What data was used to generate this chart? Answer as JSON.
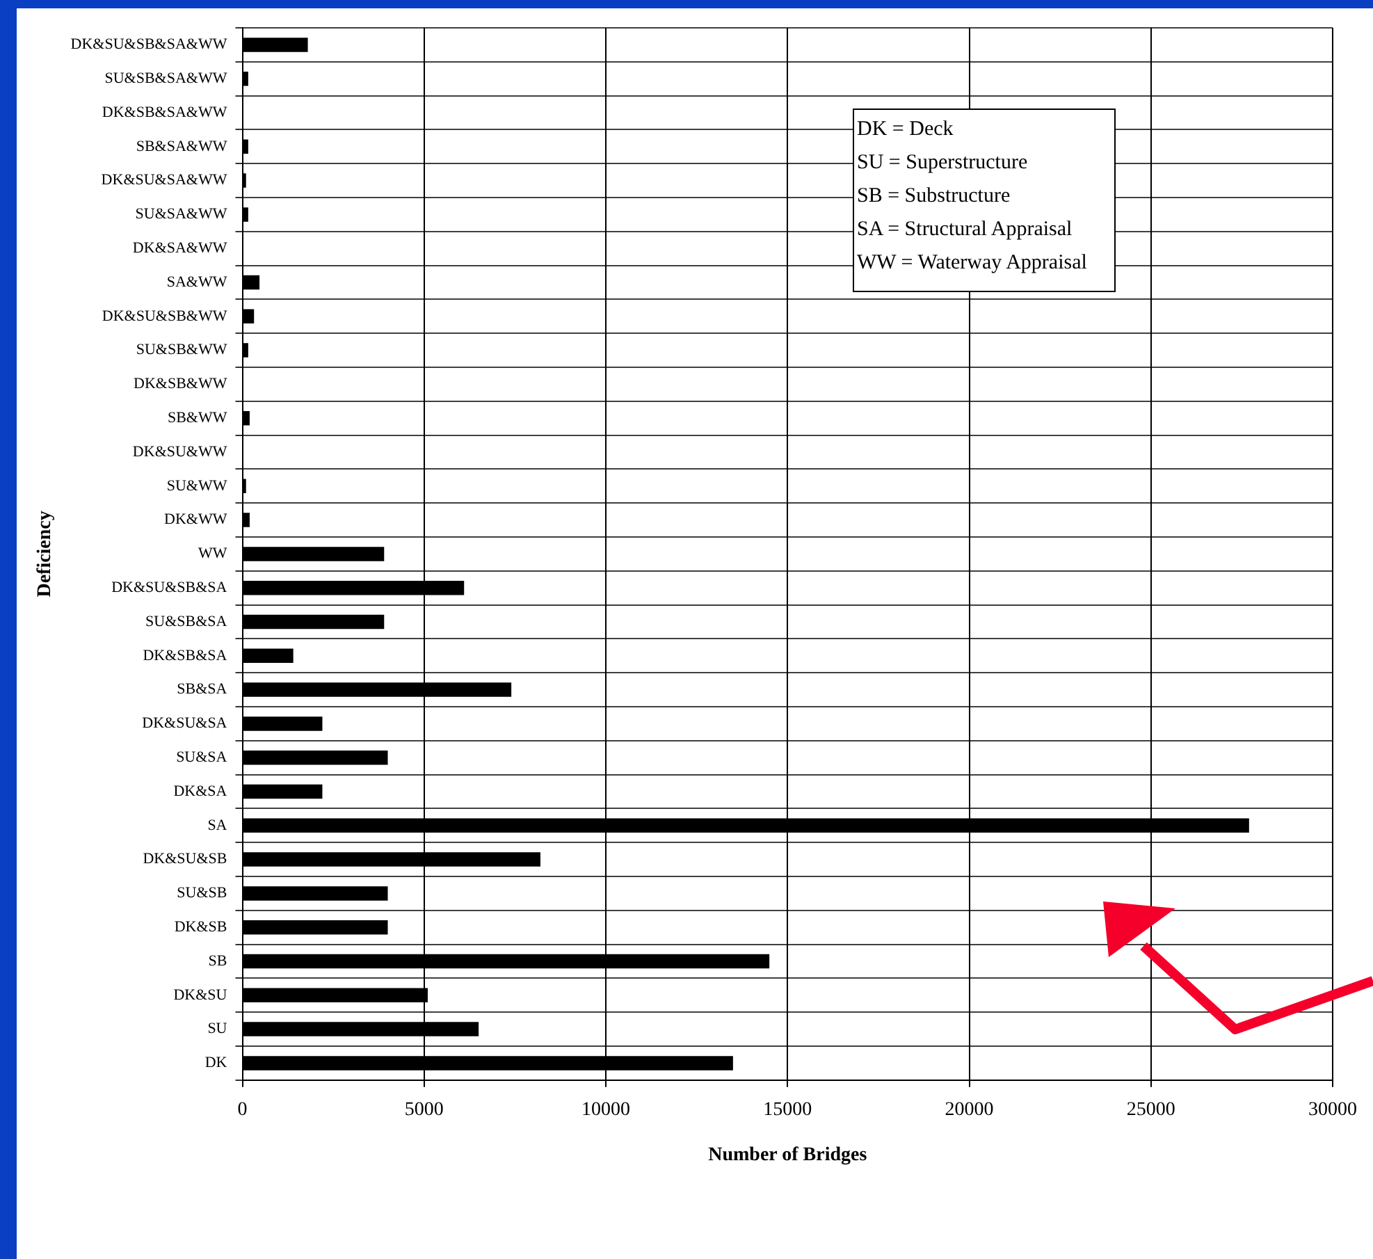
{
  "chart_data": {
    "type": "bar",
    "orientation": "horizontal",
    "xlabel": "Number of Bridges",
    "ylabel": "Deficiency",
    "categories": [
      "DK&SU&SB&SA&WW",
      "SU&SB&SA&WW",
      "DK&SB&SA&WW",
      "SB&SA&WW",
      "DK&SU&SA&WW",
      "SU&SA&WW",
      "DK&SA&WW",
      "SA&WW",
      "DK&SU&SB&WW",
      "SU&SB&WW",
      "DK&SB&WW",
      "SB&WW",
      "DK&SU&WW",
      "SU&WW",
      "DK&WW",
      "WW",
      "DK&SU&SB&SA",
      "SU&SB&SA",
      "DK&SB&SA",
      "SB&SA",
      "DK&SU&SA",
      "SU&SA",
      "DK&SA",
      "SA",
      "DK&SU&SB",
      "SU&SB",
      "DK&SB",
      "SB",
      "DK&SU",
      "SU",
      "DK"
    ],
    "values": [
      1800,
      160,
      0,
      160,
      100,
      160,
      0,
      470,
      320,
      160,
      0,
      200,
      0,
      100,
      200,
      3900,
      6100,
      3900,
      1400,
      7400,
      2200,
      4000,
      2200,
      27700,
      8200,
      4000,
      4000,
      14500,
      5100,
      6500,
      13500
    ],
    "color": "#000000",
    "xlim": [
      0,
      30000
    ],
    "xticks": [
      0,
      5000,
      10000,
      15000,
      20000,
      25000,
      30000
    ],
    "grid": true,
    "annotations": [
      "DK = Deck",
      "SU = Superstructure",
      "SB = Substructure",
      "SA = Structural Appraisal",
      "WW = Waterway Appraisal"
    ]
  }
}
